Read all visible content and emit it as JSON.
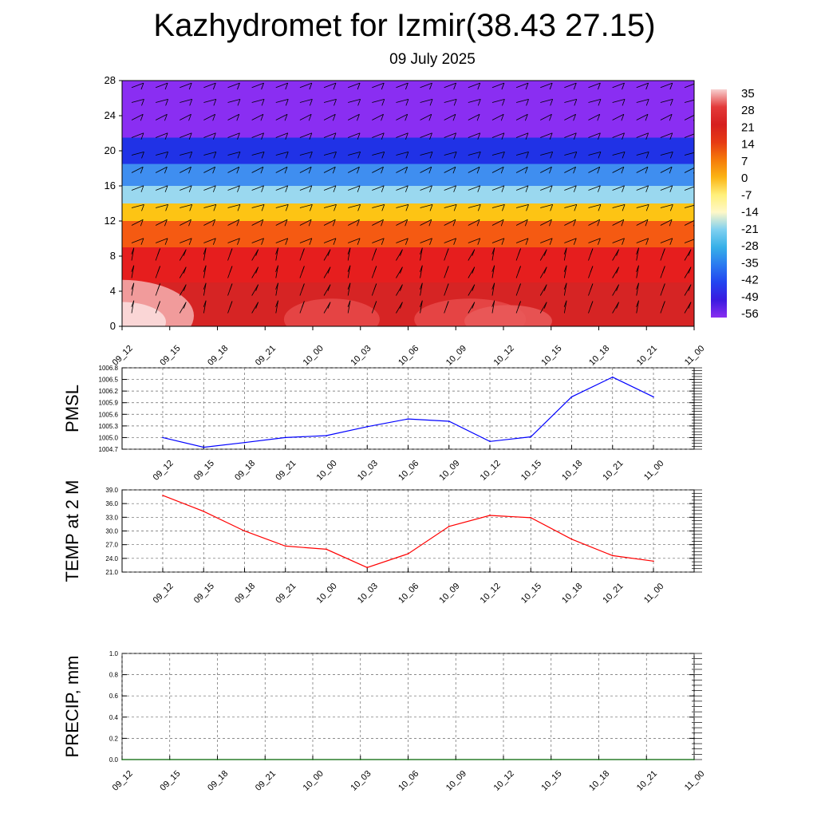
{
  "title": "Kazhydromet for Izmir(38.43 27.15)",
  "subtitle": "09 July 2025",
  "chart_data": [
    {
      "type": "heatmap",
      "name": "cross-section",
      "ylim": [
        0,
        28
      ],
      "yticks": [
        0,
        4,
        8,
        12,
        16,
        20,
        24,
        28
      ],
      "x": [
        "09_12",
        "09_15",
        "09_18",
        "09_21",
        "10_00",
        "10_03",
        "10_06",
        "10_09",
        "10_12",
        "10_15",
        "10_18",
        "10_21",
        "11_00"
      ],
      "colorbar": {
        "labels": [
          "35",
          "28",
          "21",
          "14",
          "7",
          "0",
          "-7",
          "-14",
          "-21",
          "-28",
          "-35",
          "-42",
          "-49",
          "-56"
        ],
        "colors": [
          "#f7d0d0",
          "#e33a3a",
          "#d61f1f",
          "#e63a14",
          "#f57a0a",
          "#fbb414",
          "#fff07a",
          "#fff8c8",
          "#7fd0f0",
          "#36b0e8",
          "#2a7af0",
          "#2244f0",
          "#3a1ae0",
          "#8a2ef0"
        ]
      },
      "bands": [
        {
          "from": 0,
          "to": 5,
          "color": "#d62424",
          "temp": 32
        },
        {
          "from": 5,
          "to": 9,
          "color": "#e61e1e",
          "temp": 21
        },
        {
          "from": 9,
          "to": 12,
          "color": "#f55a12",
          "temp": 10
        },
        {
          "from": 12,
          "to": 14,
          "color": "#fdc414",
          "temp": 0
        },
        {
          "from": 14,
          "to": 16,
          "color": "#9ad8ef",
          "temp": -14
        },
        {
          "from": 16,
          "to": 18.5,
          "color": "#3f8ef0",
          "temp": -30
        },
        {
          "from": 18.5,
          "to": 21.5,
          "color": "#2032e6",
          "temp": -50
        },
        {
          "from": 21.5,
          "to": 28,
          "color": "#8a2ef2",
          "temp": -56
        }
      ]
    },
    {
      "type": "line",
      "name": "pmsl",
      "ylabel": "PMSL",
      "ylim": [
        1004.7,
        1006.8
      ],
      "yticks": [
        "1004.7",
        "1005.0",
        "1005.3",
        "1005.6",
        "1005.9",
        "1006.2",
        "1006.5",
        "1006.8"
      ],
      "x": [
        "09_12",
        "09_15",
        "09_18",
        "09_21",
        "10_00",
        "10_03",
        "10_06",
        "10_09",
        "10_12",
        "10_15",
        "10_18",
        "10_21",
        "11_00"
      ],
      "values": [
        1005.0,
        1004.75,
        1004.87,
        1005.0,
        1005.05,
        1005.28,
        1005.48,
        1005.42,
        1004.9,
        1005.02,
        1006.05,
        1006.56,
        1006.05
      ],
      "line_color": "#0000ff"
    },
    {
      "type": "line",
      "name": "temp",
      "ylabel": "TEMP at 2 M",
      "ylim": [
        21,
        39
      ],
      "yticks": [
        "21.0",
        "24.0",
        "27.0",
        "30.0",
        "33.0",
        "36.0",
        "39.0"
      ],
      "x": [
        "09_12",
        "09_15",
        "09_18",
        "09_21",
        "10_00",
        "10_03",
        "10_06",
        "10_09",
        "10_12",
        "10_15",
        "10_18",
        "10_21",
        "11_00"
      ],
      "values": [
        37.8,
        34.3,
        30.0,
        26.7,
        26.0,
        22.0,
        25.0,
        31.0,
        33.4,
        32.9,
        28.2,
        24.6,
        23.4
      ],
      "line_color": "#ff0000"
    },
    {
      "type": "line",
      "name": "precip",
      "ylabel": "PRECIP, mm",
      "ylim": [
        0,
        1
      ],
      "yticks": [
        "0.0",
        "0.2",
        "0.4",
        "0.6",
        "0.8",
        "1.0"
      ],
      "x": [
        "09_12",
        "09_15",
        "09_18",
        "09_21",
        "10_00",
        "10_03",
        "10_06",
        "10_09",
        "10_12",
        "10_15",
        "10_18",
        "10_21",
        "11_00"
      ],
      "values": [
        0,
        0,
        0,
        0,
        0,
        0,
        0,
        0,
        0,
        0,
        0,
        0,
        0
      ],
      "line_color": "#006400"
    }
  ]
}
